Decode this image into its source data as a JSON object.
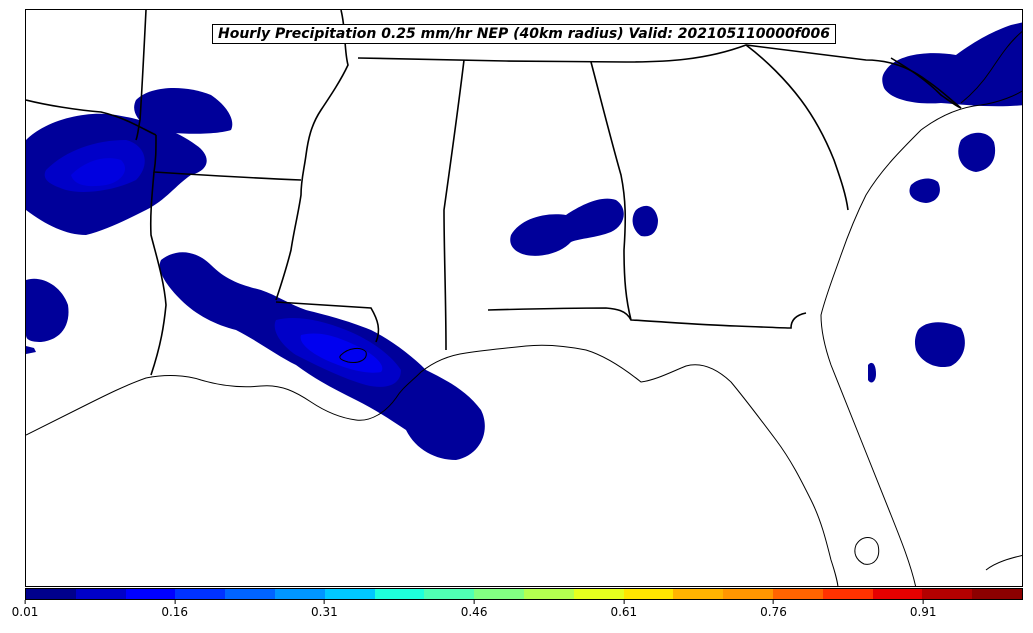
{
  "title": "Hourly Precipitation 0.25 mm/hr NEP (40km radius) Valid: 202105110000f006",
  "colorbar": {
    "colors": [
      "#00008c",
      "#0000c8",
      "#0000ff",
      "#0032ff",
      "#0064ff",
      "#0096ff",
      "#00c8ff",
      "#1effdc",
      "#50ffb4",
      "#82ff82",
      "#b4ff50",
      "#e6ff1e",
      "#ffe600",
      "#ffb400",
      "#ff9600",
      "#ff6400",
      "#ff3200",
      "#e60000",
      "#b40000",
      "#8c0000"
    ],
    "ticks": [
      "0.01",
      "0.16",
      "0.31",
      "0.46",
      "0.61",
      "0.76",
      "0.91"
    ],
    "tick_values": [
      0.01,
      0.16,
      0.31,
      0.46,
      0.61,
      0.76,
      0.91
    ],
    "range": [
      0.01,
      1.01
    ]
  },
  "map": {
    "region": "Southeastern United States and Gulf of Mexico",
    "shading": "Neighborhood exceedance probability (NEP)"
  }
}
